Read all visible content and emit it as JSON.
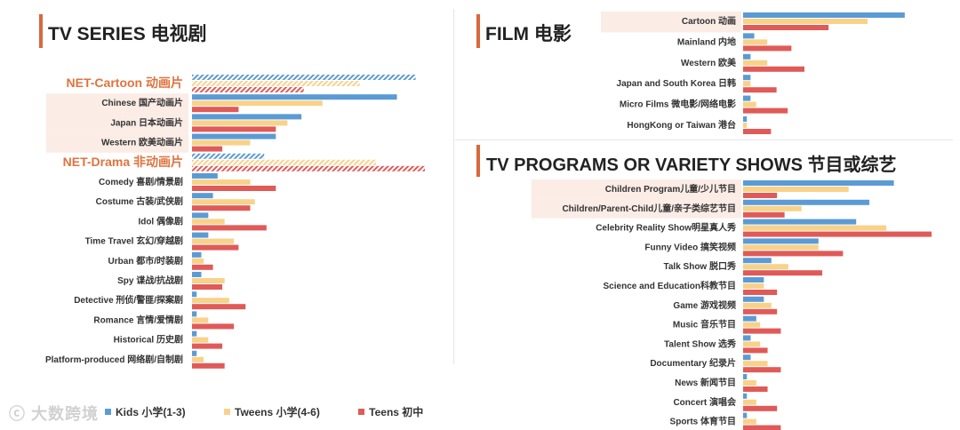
{
  "titles": {
    "tv_series": "TV SERIES 电视剧",
    "film": "FILM 电影",
    "tv_programs": "TV PROGRAMS OR VARIETY SHOWS 节目或综艺"
  },
  "legend": [
    {
      "name": "Kids 小学(1-3)",
      "color": "#5b9bd5"
    },
    {
      "name": "Tweens 小学(4-6)",
      "color": "#f8d28a"
    },
    {
      "name": "Teens 初中",
      "color": "#e05a57"
    }
  ],
  "watermark": "大数跨境",
  "colors": {
    "kids": "#5b9bd5",
    "tweens": "#f8d28a",
    "teens": "#e05a57",
    "accent": "#d9683c",
    "highlight": "#fbece6"
  },
  "chart_data": [
    {
      "type": "bar",
      "orientation": "horizontal",
      "title": "TV SERIES 电视剧",
      "xlim": [
        0,
        100
      ],
      "series_names": [
        "Kids 小学(1-3)",
        "Tweens 小学(4-6)",
        "Teens 初中"
      ],
      "categories": [
        {
          "label": "NET-Cartoon 动画片",
          "group": true,
          "values": [
            96,
            72,
            48
          ]
        },
        {
          "label": "Chinese 国产动画片",
          "highlight": true,
          "values": [
            88,
            56,
            20
          ]
        },
        {
          "label": "Japan 日本动画片",
          "highlight": true,
          "values": [
            47,
            41,
            36
          ]
        },
        {
          "label": "Western 欧美动画片",
          "highlight": true,
          "values": [
            36,
            25,
            13
          ]
        },
        {
          "label": "NET-Drama 非动画片",
          "group": true,
          "values": [
            31,
            79,
            100
          ]
        },
        {
          "label": "Comedy 喜剧/情景剧",
          "values": [
            11,
            25,
            36
          ]
        },
        {
          "label": "Costume 古装/武侠剧",
          "values": [
            9,
            27,
            25
          ]
        },
        {
          "label": "Idol 偶像剧",
          "values": [
            7,
            14,
            32
          ]
        },
        {
          "label": "Time Travel 玄幻/穿越剧",
          "values": [
            7,
            18,
            20
          ]
        },
        {
          "label": "Urban 都市/时装剧",
          "values": [
            4,
            5,
            9
          ]
        },
        {
          "label": "Spy 谍战/抗战剧",
          "values": [
            4,
            14,
            13
          ]
        },
        {
          "label": "Detective 刑侦/警匪/探案剧",
          "values": [
            2,
            16,
            23
          ]
        },
        {
          "label": "Romance 言情/爱情剧",
          "values": [
            2,
            7,
            18
          ]
        },
        {
          "label": "Historical 历史剧",
          "values": [
            2,
            7,
            13
          ]
        },
        {
          "label": "Platform-produced 网络剧/自制剧",
          "values": [
            2,
            5,
            14
          ]
        }
      ]
    },
    {
      "type": "bar",
      "orientation": "horizontal",
      "title": "FILM 电影",
      "xlim": [
        0,
        100
      ],
      "series_names": [
        "Kids 小学(1-3)",
        "Tweens 小学(4-6)",
        "Teens 初中"
      ],
      "categories": [
        {
          "label": "Cartoon 动画",
          "highlight": true,
          "values": [
            87,
            67,
            46
          ]
        },
        {
          "label": "Mainland 内地",
          "values": [
            6,
            13,
            26
          ]
        },
        {
          "label": "Western 欧美",
          "values": [
            4,
            13,
            33
          ]
        },
        {
          "label": "Japan and South Korea 日韩",
          "values": [
            4,
            4,
            18
          ]
        },
        {
          "label": "Micro Films 微电影/网络电影",
          "values": [
            4,
            7,
            24
          ]
        },
        {
          "label": "HongKong or Taiwan 港台",
          "values": [
            2,
            2,
            15
          ]
        }
      ]
    },
    {
      "type": "bar",
      "orientation": "horizontal",
      "title": "TV PROGRAMS OR VARIETY SHOWS 节目或综艺",
      "xlim": [
        0,
        100
      ],
      "series_names": [
        "Kids 小学(1-3)",
        "Tweens 小学(4-6)",
        "Teens 初中"
      ],
      "categories": [
        {
          "label": "Children Program儿童/少儿节目",
          "highlight": true,
          "values": [
            80,
            56,
            18
          ]
        },
        {
          "label": "Children/Parent-Child儿童/亲子类综艺节目",
          "highlight": true,
          "values": [
            67,
            31,
            22
          ]
        },
        {
          "label": "Celebrity Reality Show明星真人秀",
          "values": [
            60,
            76,
            100
          ]
        },
        {
          "label": "Funny Video 搞笑视频",
          "values": [
            40,
            40,
            53
          ]
        },
        {
          "label": "Talk Show 脱口秀",
          "values": [
            15,
            24,
            42
          ]
        },
        {
          "label": "Science and Education科教节目",
          "values": [
            11,
            11,
            18
          ]
        },
        {
          "label": "Game 游戏视频",
          "values": [
            11,
            15,
            18
          ]
        },
        {
          "label": "Music 音乐节目",
          "values": [
            7,
            9,
            20
          ]
        },
        {
          "label": "Talent Show 选秀",
          "values": [
            4,
            9,
            13
          ]
        },
        {
          "label": "Documentary 纪录片",
          "values": [
            4,
            13,
            20
          ]
        },
        {
          "label": "News 新闻节目",
          "values": [
            2,
            7,
            13
          ]
        },
        {
          "label": "Concert 演唱会",
          "values": [
            2,
            7,
            18
          ]
        },
        {
          "label": "Sports 体育节目",
          "values": [
            2,
            7,
            20
          ]
        }
      ]
    }
  ]
}
